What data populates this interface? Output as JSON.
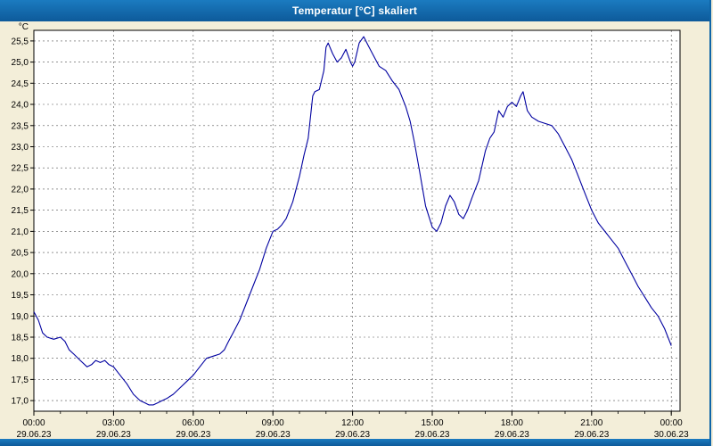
{
  "window": {
    "title": "Temperatur [°C] skaliert"
  },
  "colors": {
    "title_bar_blue": "#0f65a8",
    "background_cream": "#f3eed9",
    "plot_background": "#ffffff",
    "line_navy": "#0000a0",
    "grid": "#555555",
    "frame": "#000000"
  },
  "chart_data": {
    "type": "line",
    "title": "Temperatur [°C] skaliert",
    "xlabel": "",
    "ylabel": "°C",
    "x_unit": "hours",
    "xlim": [
      0,
      24.33
    ],
    "ylim": [
      16.75,
      25.75
    ],
    "grid": "dashed",
    "legend_position": "none",
    "line_color": "#0000a0",
    "grid_color": "#555555",
    "y_ticks": [
      17.0,
      17.5,
      18.0,
      18.5,
      19.0,
      19.5,
      20.0,
      20.5,
      21.0,
      21.5,
      22.0,
      22.5,
      23.0,
      23.5,
      24.0,
      24.5,
      25.0,
      25.5
    ],
    "y_tick_labels": [
      "17,0",
      "17,5",
      "18,0",
      "18,5",
      "19,0",
      "19,5",
      "20,0",
      "20,5",
      "21,0",
      "21,5",
      "22,0",
      "22,5",
      "23,0",
      "23,5",
      "24,0",
      "24,5",
      "25,0",
      "25,5"
    ],
    "x_ticks": [
      {
        "hour": 0,
        "label": "00:00",
        "date": "29.06.23"
      },
      {
        "hour": 3,
        "label": "03:00",
        "date": "29.06.23"
      },
      {
        "hour": 6,
        "label": "06:00",
        "date": "29.06.23"
      },
      {
        "hour": 9,
        "label": "09:00",
        "date": "29.06.23"
      },
      {
        "hour": 12,
        "label": "12:00",
        "date": "29.06.23"
      },
      {
        "hour": 15,
        "label": "15:00",
        "date": "29.06.23"
      },
      {
        "hour": 18,
        "label": "18:00",
        "date": "29.06.23"
      },
      {
        "hour": 21,
        "label": "21:00",
        "date": "29.06.23"
      },
      {
        "hour": 24,
        "label": "00:00",
        "date": "30.06.23"
      }
    ],
    "series": [
      {
        "name": "Temperatur",
        "points": [
          [
            0,
            19.1
          ],
          [
            0.17,
            18.9
          ],
          [
            0.33,
            18.6
          ],
          [
            0.5,
            18.5
          ],
          [
            0.75,
            18.45
          ],
          [
            1.0,
            18.5
          ],
          [
            1.17,
            18.4
          ],
          [
            1.33,
            18.2
          ],
          [
            1.5,
            18.1
          ],
          [
            1.75,
            17.95
          ],
          [
            2.0,
            17.8
          ],
          [
            2.17,
            17.85
          ],
          [
            2.33,
            17.95
          ],
          [
            2.5,
            17.9
          ],
          [
            2.67,
            17.95
          ],
          [
            2.83,
            17.85
          ],
          [
            3.0,
            17.8
          ],
          [
            3.25,
            17.6
          ],
          [
            3.5,
            17.4
          ],
          [
            3.75,
            17.15
          ],
          [
            4.0,
            17.0
          ],
          [
            4.17,
            16.95
          ],
          [
            4.33,
            16.9
          ],
          [
            4.5,
            16.9
          ],
          [
            4.67,
            16.95
          ],
          [
            4.83,
            17.0
          ],
          [
            5.0,
            17.05
          ],
          [
            5.25,
            17.15
          ],
          [
            5.5,
            17.3
          ],
          [
            5.75,
            17.45
          ],
          [
            6.0,
            17.6
          ],
          [
            6.25,
            17.8
          ],
          [
            6.5,
            18.0
          ],
          [
            6.75,
            18.05
          ],
          [
            7.0,
            18.1
          ],
          [
            7.17,
            18.2
          ],
          [
            7.33,
            18.4
          ],
          [
            7.5,
            18.6
          ],
          [
            7.75,
            18.9
          ],
          [
            8.0,
            19.3
          ],
          [
            8.25,
            19.7
          ],
          [
            8.5,
            20.1
          ],
          [
            8.75,
            20.6
          ],
          [
            9.0,
            21.0
          ],
          [
            9.17,
            21.05
          ],
          [
            9.33,
            21.15
          ],
          [
            9.5,
            21.3
          ],
          [
            9.75,
            21.7
          ],
          [
            10.0,
            22.3
          ],
          [
            10.17,
            22.8
          ],
          [
            10.33,
            23.2
          ],
          [
            10.5,
            24.2
          ],
          [
            10.58,
            24.3
          ],
          [
            10.75,
            24.35
          ],
          [
            10.92,
            24.8
          ],
          [
            11.0,
            25.35
          ],
          [
            11.08,
            25.45
          ],
          [
            11.25,
            25.2
          ],
          [
            11.42,
            25.0
          ],
          [
            11.58,
            25.1
          ],
          [
            11.75,
            25.3
          ],
          [
            11.92,
            25.0
          ],
          [
            12.0,
            24.9
          ],
          [
            12.08,
            25.0
          ],
          [
            12.25,
            25.45
          ],
          [
            12.42,
            25.6
          ],
          [
            12.58,
            25.4
          ],
          [
            12.75,
            25.2
          ],
          [
            13.0,
            24.9
          ],
          [
            13.25,
            24.8
          ],
          [
            13.5,
            24.55
          ],
          [
            13.75,
            24.35
          ],
          [
            14.0,
            23.95
          ],
          [
            14.17,
            23.6
          ],
          [
            14.33,
            23.1
          ],
          [
            14.5,
            22.5
          ],
          [
            14.75,
            21.6
          ],
          [
            15.0,
            21.1
          ],
          [
            15.17,
            21.0
          ],
          [
            15.33,
            21.2
          ],
          [
            15.5,
            21.6
          ],
          [
            15.67,
            21.85
          ],
          [
            15.83,
            21.7
          ],
          [
            16.0,
            21.4
          ],
          [
            16.17,
            21.3
          ],
          [
            16.33,
            21.5
          ],
          [
            16.5,
            21.8
          ],
          [
            16.75,
            22.2
          ],
          [
            17.0,
            22.9
          ],
          [
            17.17,
            23.2
          ],
          [
            17.33,
            23.35
          ],
          [
            17.5,
            23.85
          ],
          [
            17.67,
            23.7
          ],
          [
            17.83,
            23.95
          ],
          [
            18.0,
            24.05
          ],
          [
            18.17,
            23.95
          ],
          [
            18.33,
            24.2
          ],
          [
            18.42,
            24.3
          ],
          [
            18.58,
            23.85
          ],
          [
            18.75,
            23.7
          ],
          [
            19.0,
            23.6
          ],
          [
            19.25,
            23.55
          ],
          [
            19.5,
            23.5
          ],
          [
            19.75,
            23.3
          ],
          [
            20.0,
            23.0
          ],
          [
            20.25,
            22.7
          ],
          [
            20.5,
            22.3
          ],
          [
            20.75,
            21.9
          ],
          [
            21.0,
            21.5
          ],
          [
            21.25,
            21.2
          ],
          [
            21.5,
            21.0
          ],
          [
            21.75,
            20.8
          ],
          [
            22.0,
            20.6
          ],
          [
            22.25,
            20.3
          ],
          [
            22.5,
            20.0
          ],
          [
            22.75,
            19.7
          ],
          [
            23.0,
            19.45
          ],
          [
            23.25,
            19.2
          ],
          [
            23.5,
            19.0
          ],
          [
            23.75,
            18.7
          ],
          [
            24.0,
            18.3
          ]
        ]
      }
    ]
  }
}
